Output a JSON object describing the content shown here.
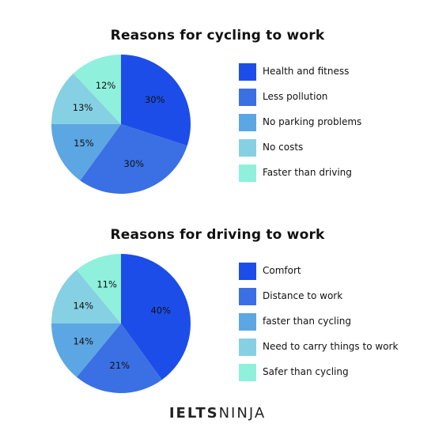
{
  "chart_data": [
    {
      "type": "pie",
      "title": "Reasons for cycling to work",
      "categories": [
        "Health and fitness",
        "Less pollution",
        "No parking problems",
        "No costs",
        "Faster than driving"
      ],
      "values": [
        30,
        30,
        15,
        13,
        12
      ],
      "data_labels": [
        "30%",
        "30%",
        "15%",
        "13%",
        "12%"
      ],
      "colors": [
        "#1d4de8",
        "#3a70e3",
        "#5ca6e3",
        "#86d0e4",
        "#8ff0dc"
      ],
      "legend": "right"
    },
    {
      "type": "pie",
      "title": "Reasons for driving to work",
      "categories": [
        "Comfort",
        "Distance to work",
        "faster than cycling",
        "Need to carry things to work",
        "Safer than cycling"
      ],
      "values": [
        40,
        21,
        14,
        14,
        11
      ],
      "data_labels": [
        "40%",
        "21%",
        "14%",
        "14%",
        "11%"
      ],
      "colors": [
        "#1d4de8",
        "#3a70e3",
        "#5ca6e3",
        "#86d0e4",
        "#8ff0dc"
      ],
      "legend": "right"
    }
  ],
  "brand": {
    "part1": "IELTS",
    "part2": "NINJA"
  }
}
